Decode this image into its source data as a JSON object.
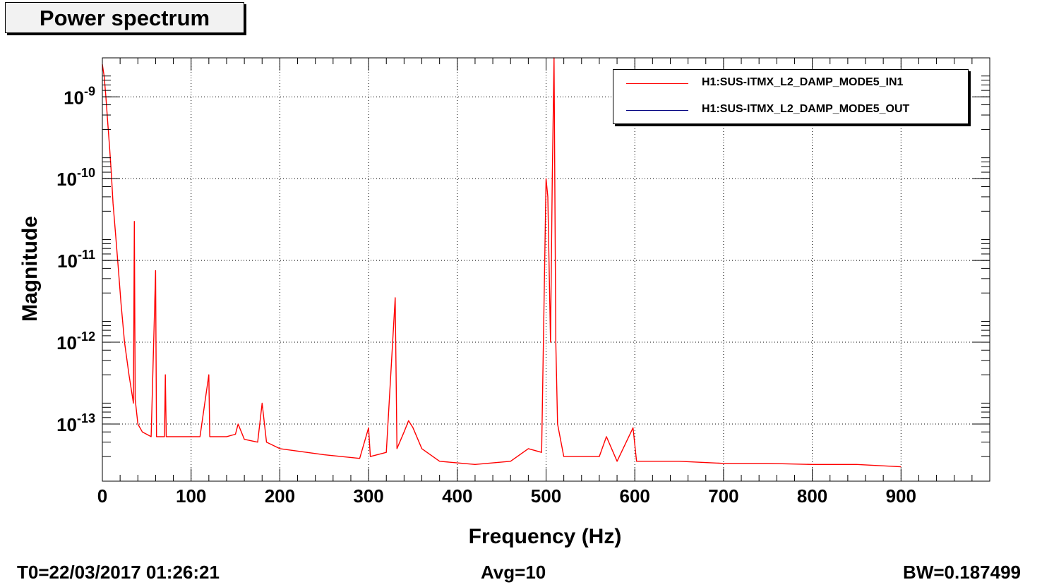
{
  "title": "Power spectrum",
  "footer": {
    "t0": "T0=22/03/2017 01:26:21",
    "avg": "Avg=10",
    "bw": "BW=0.187499"
  },
  "legend": [
    {
      "label": "H1:SUS-ITMX_L2_DAMP_MODE5_IN1",
      "color": "#ff0000"
    },
    {
      "label": "H1:SUS-ITMX_L2_DAMP_MODE5_OUT",
      "color": "#000080"
    }
  ],
  "chart_data": {
    "type": "line",
    "title": "Power spectrum",
    "xlabel": "Frequency (Hz)",
    "ylabel": "Magnitude",
    "xlim": [
      0,
      1000
    ],
    "ylim": [
      2e-14,
      3e-09
    ],
    "yscale": "log",
    "grid": true,
    "legend_position": "top-right",
    "x_ticks": [
      0,
      100,
      200,
      300,
      400,
      500,
      600,
      700,
      800,
      900
    ],
    "x_tick_labels": [
      "0",
      "100",
      "200",
      "300",
      "400",
      "500",
      "600",
      "700",
      "800",
      "900"
    ],
    "y_ticks": [
      1e-13,
      1e-12,
      1e-11,
      1e-10,
      1e-09
    ],
    "y_tick_labels": [
      {
        "base": "10",
        "exp": "-13"
      },
      {
        "base": "10",
        "exp": "-12"
      },
      {
        "base": "10",
        "exp": "-11"
      },
      {
        "base": "10",
        "exp": "-10"
      },
      {
        "base": "10",
        "exp": "-9"
      }
    ],
    "series": [
      {
        "name": "H1:SUS-ITMX_L2_DAMP_MODE5_IN1",
        "color": "#ff0000",
        "points": [
          [
            0,
            2.5e-09
          ],
          [
            2,
            1.8e-09
          ],
          [
            4,
            1e-09
          ],
          [
            6,
            5e-10
          ],
          [
            8,
            2.5e-10
          ],
          [
            10,
            1.2e-10
          ],
          [
            12,
            5e-11
          ],
          [
            15,
            2e-11
          ],
          [
            18,
            8e-12
          ],
          [
            21,
            3e-12
          ],
          [
            25,
            1e-12
          ],
          [
            30,
            4e-13
          ],
          [
            35,
            1.8e-13
          ],
          [
            36,
            3e-11
          ],
          [
            37,
            2e-13
          ],
          [
            40,
            1e-13
          ],
          [
            45,
            8e-14
          ],
          [
            55,
            7e-14
          ],
          [
            60,
            7.5e-12
          ],
          [
            61,
            7e-14
          ],
          [
            70,
            7e-14
          ],
          [
            71,
            4e-13
          ],
          [
            72,
            7e-14
          ],
          [
            90,
            7e-14
          ],
          [
            110,
            7e-14
          ],
          [
            120,
            4e-13
          ],
          [
            121,
            7e-14
          ],
          [
            140,
            7e-14
          ],
          [
            150,
            7.5e-14
          ],
          [
            153,
            1e-13
          ],
          [
            160,
            6.5e-14
          ],
          [
            175,
            6e-14
          ],
          [
            180,
            1.8e-13
          ],
          [
            185,
            6e-14
          ],
          [
            200,
            5e-14
          ],
          [
            250,
            4.2e-14
          ],
          [
            290,
            3.8e-14
          ],
          [
            300,
            9e-14
          ],
          [
            302,
            4e-14
          ],
          [
            320,
            4.5e-14
          ],
          [
            330,
            3.5e-12
          ],
          [
            332,
            5e-14
          ],
          [
            340,
            8e-14
          ],
          [
            345,
            1.1e-13
          ],
          [
            350,
            9e-14
          ],
          [
            360,
            5e-14
          ],
          [
            380,
            3.5e-14
          ],
          [
            420,
            3.2e-14
          ],
          [
            460,
            3.5e-14
          ],
          [
            480,
            5e-14
          ],
          [
            495,
            4.5e-14
          ],
          [
            500,
            1e-10
          ],
          [
            502,
            6e-11
          ],
          [
            505,
            1e-12
          ],
          [
            507,
            1e-10
          ],
          [
            509,
            3e-09
          ],
          [
            511,
            1e-12
          ],
          [
            513,
            1e-13
          ],
          [
            520,
            4e-14
          ],
          [
            560,
            4e-14
          ],
          [
            568,
            7e-14
          ],
          [
            580,
            3.5e-14
          ],
          [
            598,
            9e-14
          ],
          [
            602,
            3.5e-14
          ],
          [
            650,
            3.5e-14
          ],
          [
            700,
            3.3e-14
          ],
          [
            750,
            3.3e-14
          ],
          [
            800,
            3.2e-14
          ],
          [
            850,
            3.2e-14
          ],
          [
            900,
            3e-14
          ]
        ]
      }
    ]
  }
}
